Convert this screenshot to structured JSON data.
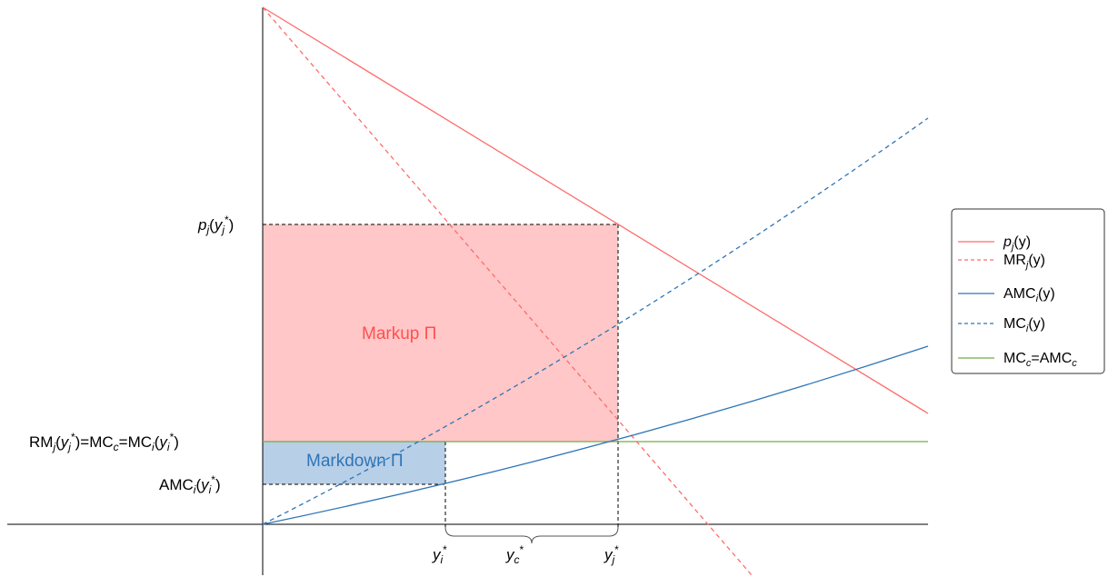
{
  "colors": {
    "red": "#ff6b6b",
    "blue": "#2e75b6",
    "green": "#70ad47",
    "markup_fill": "#ffc7c7",
    "markdown_fill": "#b8cfe8",
    "markup_text": "#ff5050",
    "markdown_text": "#2e75b6"
  },
  "labels": {
    "markup": "Markup Π",
    "markdown": "Markdown Π"
  },
  "y_axis_labels": [
    {
      "key": "p",
      "text": "p",
      "sub": "j",
      "rest": "(y",
      "sub2": "j",
      "sup": "*",
      "end": ")"
    },
    {
      "key": "rm",
      "text": "RM",
      "sub": "j",
      "rest": "(y",
      "sub2": "j",
      "sup": "*",
      "end": ")=MC",
      "sub3": "c",
      "rest2": "=MC",
      "sub4": "i",
      "rest3": "(y",
      "sub5": "i",
      "sup2": "*",
      "end2": ")"
    },
    {
      "key": "amc",
      "text": "AMC",
      "sub": "i",
      "rest": "(y",
      "sub2": "i",
      "sup": "*",
      "end": ")"
    }
  ],
  "x_axis_labels": [
    {
      "key": "yi",
      "text": "y",
      "sub": "i",
      "sup": "*"
    },
    {
      "key": "yc",
      "text": "y",
      "sub": "c",
      "sup": "*"
    },
    {
      "key": "yj",
      "text": "y",
      "sub": "j",
      "sup": "*"
    }
  ],
  "legend": [
    {
      "key": "pj",
      "base": "p",
      "sub": "j",
      "end": "(y)",
      "italic_base": true,
      "color": "red",
      "dashed": false
    },
    {
      "key": "mrj",
      "base": "MR",
      "sub": "j",
      "end": "(y)",
      "italic_base": false,
      "color": "red",
      "dashed": true
    },
    {
      "key": "amci",
      "base": "AMC",
      "sub": "i",
      "end": "(y)",
      "italic_base": false,
      "color": "blue",
      "dashed": false
    },
    {
      "key": "mci",
      "base": "MC",
      "sub": "i",
      "end": "(y)",
      "italic_base": false,
      "color": "blue",
      "dashed": true
    },
    {
      "key": "mcc",
      "base": "MC",
      "sub": "c",
      "end": "=AMC",
      "sub2": "c",
      "italic_base": false,
      "color": "green",
      "dashed": false
    }
  ]
}
